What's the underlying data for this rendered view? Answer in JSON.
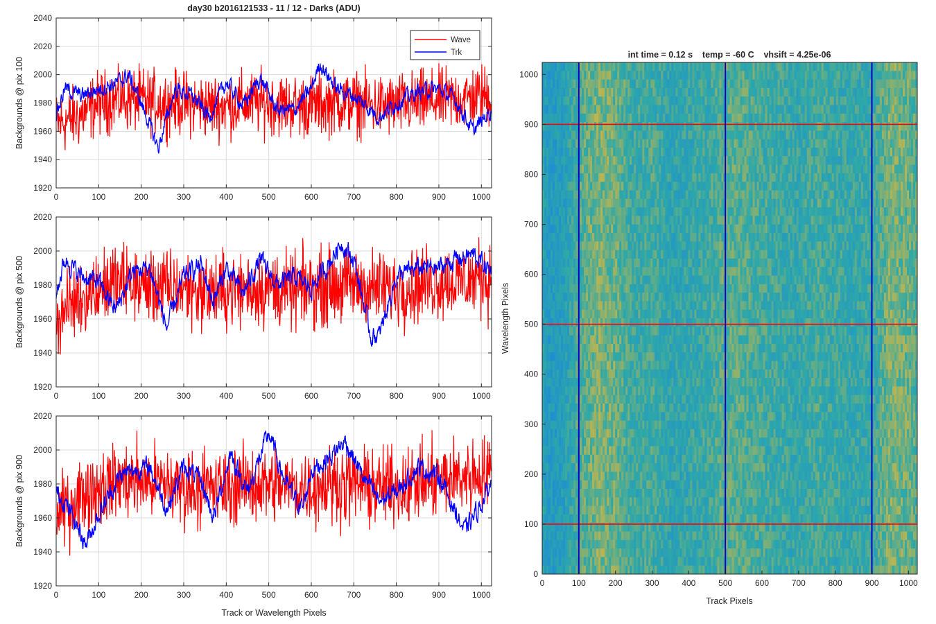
{
  "chart_data": [
    {
      "type": "line",
      "title": "day30 b2016121533 - 11 / 12 - Darks (ADU)",
      "xlabel": "",
      "ylabel": "Backgrounds @ pix 100",
      "xlim": [
        0,
        1024
      ],
      "ylim": [
        1920,
        2040
      ],
      "xticks": [
        "0",
        "100",
        "200",
        "300",
        "400",
        "500",
        "600",
        "700",
        "800",
        "900",
        "1000"
      ],
      "yticks": [
        "1920",
        "1940",
        "1960",
        "1980",
        "2000",
        "2020",
        "2040"
      ],
      "grid": true,
      "legend": {
        "position": "top-right",
        "entries": [
          "Wave",
          "Trk"
        ]
      },
      "series": [
        {
          "name": "Wave",
          "color": "#ff0000",
          "x": [
            0,
            50,
            100,
            150,
            200,
            250,
            300,
            350,
            400,
            450,
            500,
            550,
            600,
            650,
            700,
            750,
            800,
            850,
            900,
            950,
            1000,
            1023
          ],
          "y_mean": [
            1965,
            1970,
            1980,
            1983,
            1982,
            1980,
            1980,
            1978,
            1978,
            1980,
            1980,
            1978,
            1978,
            1980,
            1980,
            1978,
            1978,
            1980,
            1982,
            1983,
            1985,
            1985
          ],
          "y_min": 1933,
          "y_max": 2008
        },
        {
          "name": "Trk",
          "color": "#0000ff",
          "x": [
            0,
            20,
            60,
            100,
            150,
            170,
            200,
            240,
            280,
            320,
            360,
            400,
            440,
            480,
            520,
            560,
            600,
            620,
            660,
            700,
            760,
            800,
            850,
            900,
            940,
            980,
            1023
          ],
          "y": [
            1972,
            1990,
            1985,
            1990,
            1995,
            2000,
            1980,
            1948,
            1990,
            1985,
            1970,
            1995,
            1978,
            1998,
            1975,
            1975,
            1990,
            2008,
            1990,
            1985,
            1970,
            1980,
            1988,
            1990,
            1982,
            1960,
            1975
          ]
        }
      ]
    },
    {
      "type": "line",
      "title": "",
      "xlabel": "",
      "ylabel": "Backgrounds @ pix 500",
      "xlim": [
        0,
        1024
      ],
      "ylim": [
        1920,
        2020
      ],
      "xticks": [
        "0",
        "100",
        "200",
        "300",
        "400",
        "500",
        "600",
        "700",
        "800",
        "900",
        "1000"
      ],
      "yticks": [
        "1920",
        "1940",
        "1960",
        "1980",
        "2000",
        "2020"
      ],
      "grid": true,
      "series": [
        {
          "name": "Wave",
          "color": "#ff0000",
          "x": [
            0,
            50,
            100,
            150,
            200,
            250,
            300,
            350,
            400,
            450,
            500,
            550,
            600,
            650,
            700,
            750,
            800,
            850,
            900,
            950,
            1000,
            1023
          ],
          "y_mean": [
            1960,
            1972,
            1978,
            1982,
            1980,
            1978,
            1978,
            1976,
            1976,
            1978,
            1978,
            1976,
            1978,
            1980,
            1980,
            1978,
            1978,
            1980,
            1982,
            1982,
            1984,
            1984
          ],
          "y_min": 1930,
          "y_max": 2013
        },
        {
          "name": "Trk",
          "color": "#0000ff",
          "x": [
            0,
            20,
            60,
            100,
            140,
            180,
            220,
            260,
            300,
            340,
            370,
            400,
            440,
            480,
            520,
            560,
            600,
            640,
            670,
            700,
            740,
            760,
            800,
            850,
            900,
            940,
            980,
            1023
          ],
          "y": [
            1975,
            1995,
            1985,
            1982,
            1965,
            1988,
            1990,
            1955,
            1985,
            1992,
            1970,
            1990,
            1975,
            1995,
            1980,
            1985,
            1978,
            1992,
            2005,
            1995,
            1950,
            1950,
            1985,
            1990,
            1990,
            1995,
            1998,
            1988
          ]
        }
      ]
    },
    {
      "type": "line",
      "title": "",
      "xlabel": "Track or Wavelength Pixels",
      "ylabel": "Backgrounds @ pix 900",
      "xlim": [
        0,
        1024
      ],
      "ylim": [
        1920,
        2020
      ],
      "xticks": [
        "0",
        "100",
        "200",
        "300",
        "400",
        "500",
        "600",
        "700",
        "800",
        "900",
        "1000"
      ],
      "yticks": [
        "1920",
        "1940",
        "1960",
        "1980",
        "2000",
        "2020"
      ],
      "grid": true,
      "series": [
        {
          "name": "Wave",
          "color": "#ff0000",
          "x": [
            0,
            50,
            100,
            150,
            200,
            250,
            300,
            350,
            400,
            450,
            500,
            550,
            600,
            650,
            700,
            750,
            800,
            850,
            900,
            950,
            1000,
            1023
          ],
          "y_mean": [
            1960,
            1972,
            1978,
            1982,
            1982,
            1980,
            1978,
            1978,
            1978,
            1980,
            1980,
            1978,
            1978,
            1980,
            1980,
            1978,
            1978,
            1980,
            1982,
            1984,
            1986,
            1986
          ],
          "y_min": 1930,
          "y_max": 2013
        },
        {
          "name": "Trk",
          "color": "#0000ff",
          "x": [
            0,
            20,
            70,
            100,
            150,
            180,
            220,
            260,
            300,
            340,
            370,
            410,
            450,
            500,
            540,
            580,
            600,
            640,
            680,
            720,
            760,
            800,
            850,
            900,
            960,
            1000,
            1023
          ],
          "y": [
            1975,
            1970,
            1945,
            1962,
            1985,
            1988,
            1990,
            1965,
            1990,
            1982,
            1960,
            1998,
            1975,
            2010,
            1980,
            1965,
            1988,
            1995,
            2005,
            1985,
            1970,
            1975,
            1990,
            1985,
            1952,
            1968,
            1980
          ]
        }
      ]
    },
    {
      "type": "heatmap",
      "title": "int time = 0.12 s    temp = -60 C    vhsift = 4.25e-06",
      "xlabel": "Track Pixels",
      "ylabel": "Wavelength Pixels",
      "xlim": [
        0,
        1024
      ],
      "ylim": [
        0,
        1024
      ],
      "xticks": [
        "0",
        "100",
        "200",
        "300",
        "400",
        "500",
        "600",
        "700",
        "800",
        "900",
        "1000"
      ],
      "yticks": [
        "0",
        "100",
        "200",
        "300",
        "400",
        "500",
        "600",
        "700",
        "800",
        "900",
        "1000"
      ],
      "colormap": {
        "low": "#1f8fd0",
        "mid": "#2ea8a8",
        "high": "#c7b64a"
      },
      "column_profile": {
        "x": [
          0,
          20,
          60,
          100,
          150,
          200,
          250,
          300,
          350,
          400,
          450,
          500,
          550,
          600,
          650,
          700,
          750,
          800,
          850,
          900,
          950,
          1000,
          1023
        ],
        "level": [
          0.35,
          0.2,
          0.3,
          0.6,
          0.75,
          0.7,
          0.5,
          0.55,
          0.4,
          0.45,
          0.5,
          0.65,
          0.6,
          0.55,
          0.5,
          0.45,
          0.55,
          0.5,
          0.45,
          0.5,
          0.75,
          0.7,
          0.6
        ]
      },
      "vertical_lines": {
        "x": [
          100,
          500,
          900
        ],
        "color": "#0000cc"
      },
      "horizontal_lines": {
        "y": [
          100,
          500,
          900
        ],
        "color": "#ff0000"
      }
    }
  ]
}
